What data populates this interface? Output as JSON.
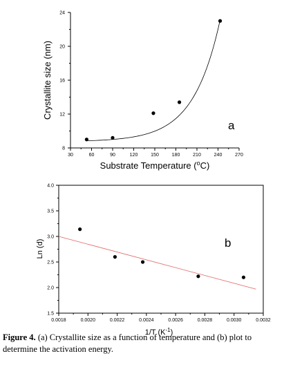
{
  "chart_data": [
    {
      "type": "scatter",
      "panel_label": "a",
      "xlabel": "Substrate Temperature (",
      "xlabel_sup": "o",
      "xlabel_suffix": "C)",
      "ylabel": "Crystallite size (nm)",
      "xlim": [
        30,
        270
      ],
      "ylim": [
        8,
        24
      ],
      "xticks": [
        30,
        60,
        90,
        120,
        150,
        180,
        210,
        240,
        270
      ],
      "yticks": [
        8,
        12,
        16,
        20,
        24
      ],
      "grid": false,
      "series": [
        {
          "x": [
            53,
            90,
            148,
            185,
            243
          ],
          "y": [
            9.0,
            9.2,
            12.1,
            13.4,
            23.0
          ]
        }
      ],
      "fit": {
        "type": "exponential",
        "x_range": [
          55,
          243
        ],
        "colors": {
          "line": "#000000"
        }
      }
    },
    {
      "type": "scatter",
      "panel_label": "b",
      "xlabel": "1/T (K",
      "xlabel_sup": "-1",
      "xlabel_suffix": ")",
      "ylabel": "Ln (d)",
      "xlim": [
        0.0018,
        0.0032
      ],
      "ylim": [
        1.5,
        4.0
      ],
      "xticks": [
        "0.0018",
        "0.0020",
        "0.0022",
        "0.0024",
        "0.0026",
        "0.0028",
        "0.0030",
        "0.0032"
      ],
      "yticks": [
        "1.5",
        "2.0",
        "2.5",
        "3.0",
        "3.5",
        "4.0"
      ],
      "grid": false,
      "series": [
        {
          "x": [
            0.001945,
            0.002185,
            0.002375,
            0.002755,
            0.003065
          ],
          "y": [
            3.14,
            2.6,
            2.5,
            2.22,
            2.2
          ]
        }
      ],
      "fit": {
        "type": "linear",
        "x_range": [
          0.0018,
          0.00315
        ],
        "y_range": [
          3.0,
          1.97
        ],
        "colors": {
          "line": "#e06060"
        }
      }
    }
  ],
  "caption": {
    "label": "Figure 4.",
    "text": " (a) Crystallite size as a function of temperature and (b) plot to determine the activation energy."
  }
}
